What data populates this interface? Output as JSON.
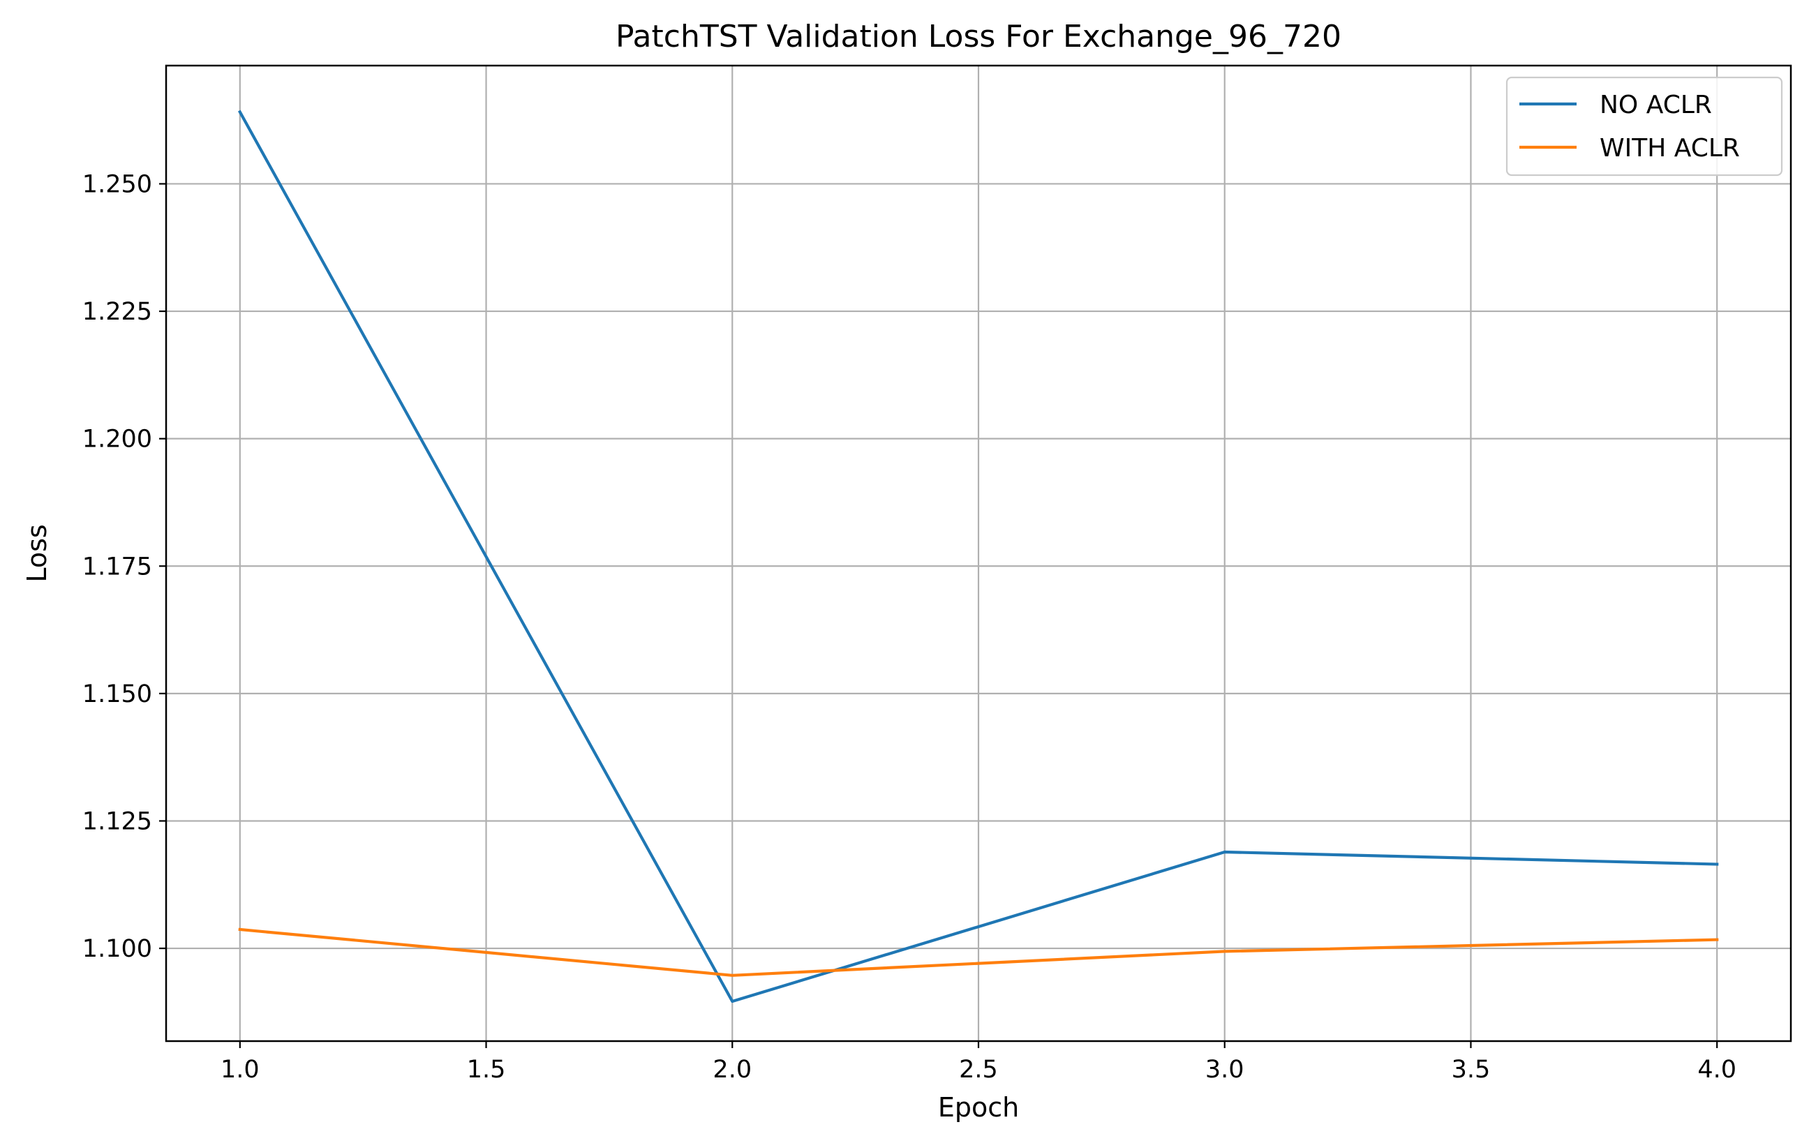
{
  "chart_data": {
    "type": "line",
    "title": "PatchTST Validation Loss For Exchange_96_720",
    "xlabel": "Epoch",
    "ylabel": "Loss",
    "x": [
      1.0,
      2.0,
      3.0,
      4.0
    ],
    "xlim": [
      0.85,
      4.15
    ],
    "ylim": [
      1.0818,
      1.2732
    ],
    "xticks": [
      1.0,
      1.5,
      2.0,
      2.5,
      3.0,
      3.5,
      4.0
    ],
    "xtick_labels": [
      "1.0",
      "1.5",
      "2.0",
      "2.5",
      "3.0",
      "3.5",
      "4.0"
    ],
    "yticks": [
      1.1,
      1.125,
      1.15,
      1.175,
      1.2,
      1.225,
      1.25
    ],
    "ytick_labels": [
      "1.100",
      "1.125",
      "1.150",
      "1.175",
      "1.200",
      "1.225",
      "1.250"
    ],
    "grid": true,
    "legend_position": "top-right",
    "series": [
      {
        "name": "NO ACLR",
        "color": "#1f77b4",
        "values": [
          1.2641,
          1.0896,
          1.1189,
          1.1165
        ]
      },
      {
        "name": "WITH ACLR",
        "color": "#ff7f0e",
        "values": [
          1.1037,
          1.0947,
          1.0994,
          1.1017
        ]
      }
    ]
  }
}
